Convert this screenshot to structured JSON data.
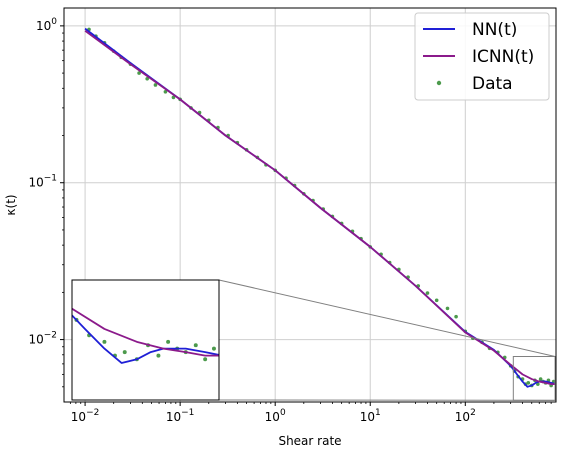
{
  "chart_data": {
    "type": "line",
    "xlabel": "Shear rate",
    "ylabel": "κ(t)",
    "xscale": "log",
    "yscale": "log",
    "xlim": [
      0.006,
      900
    ],
    "ylim": [
      0.004,
      1.3
    ],
    "grid": true,
    "legend": "top-right",
    "x_ticks": [
      {
        "value": 0.01,
        "base": "10",
        "exp": "−2"
      },
      {
        "value": 0.1,
        "base": "10",
        "exp": "−1"
      },
      {
        "value": 1,
        "base": "10",
        "exp": "0"
      },
      {
        "value": 10,
        "base": "10",
        "exp": "1"
      },
      {
        "value": 100,
        "base": "10",
        "exp": "2"
      }
    ],
    "y_ticks": [
      {
        "value": 0.01,
        "base": "10",
        "exp": "−2"
      },
      {
        "value": 0.1,
        "base": "10",
        "exp": "−1"
      },
      {
        "value": 1,
        "base": "10",
        "exp": "0"
      }
    ],
    "series": [
      {
        "name": "NN(t)",
        "kind": "line",
        "color": "#1f1fd6",
        "x": [
          0.01,
          0.03,
          0.1,
          0.3,
          1,
          3,
          10,
          30,
          100,
          200,
          300,
          350,
          400,
          450,
          500,
          550,
          600,
          700,
          800,
          900
        ],
        "y": [
          0.96,
          0.58,
          0.34,
          0.2,
          0.12,
          0.069,
          0.039,
          0.022,
          0.0112,
          0.0086,
          0.0068,
          0.006,
          0.0054,
          0.005,
          0.0051,
          0.0053,
          0.0054,
          0.0054,
          0.0053,
          0.0052
        ]
      },
      {
        "name": "ICNN(t)",
        "kind": "line",
        "color": "#8b1a8b",
        "x": [
          0.01,
          0.03,
          0.1,
          0.3,
          1,
          3,
          10,
          30,
          100,
          200,
          300,
          400,
          500,
          600,
          700,
          800,
          900
        ],
        "y": [
          0.93,
          0.57,
          0.34,
          0.2,
          0.12,
          0.069,
          0.039,
          0.022,
          0.0111,
          0.0085,
          0.0069,
          0.006,
          0.0056,
          0.0054,
          0.0053,
          0.0052,
          0.0052
        ]
      },
      {
        "name": "Data",
        "kind": "scatter",
        "color": "#4c9a4c",
        "x": [
          0.011,
          0.013,
          0.016,
          0.02,
          0.024,
          0.03,
          0.037,
          0.045,
          0.055,
          0.07,
          0.085,
          0.1,
          0.13,
          0.16,
          0.2,
          0.25,
          0.32,
          0.4,
          0.5,
          0.65,
          0.8,
          1.0,
          1.3,
          1.6,
          2.0,
          2.5,
          3.2,
          4.0,
          5.0,
          6.5,
          8.0,
          10,
          13,
          16,
          20,
          25,
          32,
          40,
          50,
          65,
          80,
          100,
          120,
          150,
          180,
          220,
          260,
          300,
          330,
          360,
          400,
          430,
          460,
          500,
          540,
          580,
          620,
          660,
          700,
          750,
          800,
          850
        ],
        "y": [
          0.95,
          0.86,
          0.78,
          0.69,
          0.63,
          0.57,
          0.5,
          0.46,
          0.42,
          0.38,
          0.35,
          0.34,
          0.3,
          0.28,
          0.25,
          0.225,
          0.2,
          0.18,
          0.162,
          0.145,
          0.13,
          0.12,
          0.107,
          0.096,
          0.085,
          0.077,
          0.068,
          0.061,
          0.055,
          0.049,
          0.044,
          0.039,
          0.035,
          0.031,
          0.028,
          0.025,
          0.022,
          0.0198,
          0.0178,
          0.0158,
          0.014,
          0.0113,
          0.0102,
          0.0096,
          0.0088,
          0.0083,
          0.0077,
          0.0068,
          0.0063,
          0.0058,
          0.0056,
          0.0052,
          0.0053,
          0.0051,
          0.0055,
          0.0052,
          0.0056,
          0.0054,
          0.0053,
          0.0055,
          0.0051,
          0.0054
        ]
      }
    ],
    "inset": {
      "xlim": [
        320,
        880
      ],
      "ylim": [
        0.0041,
        0.0078
      ],
      "ticks": false
    }
  }
}
